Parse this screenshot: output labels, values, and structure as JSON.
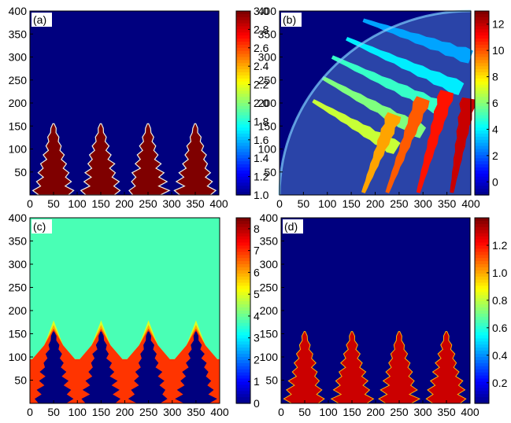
{
  "chart_data": [
    {
      "panel": "(a)",
      "type": "heatmap",
      "xlim": [
        0,
        400
      ],
      "ylim": [
        0,
        400
      ],
      "x_ticks": [
        0,
        50,
        100,
        150,
        200,
        250,
        300,
        350,
        400
      ],
      "y_ticks": [
        50,
        100,
        150,
        200,
        250,
        300,
        350,
        400
      ],
      "colorbar": {
        "range": [
          1.0,
          3.0
        ],
        "ticks": [
          1.0,
          1.2,
          1.4,
          1.6,
          1.8,
          2.0,
          2.2,
          2.4,
          2.6,
          2.8,
          3.0
        ],
        "tick_labels": [
          "1.0",
          "1.2",
          "1.4",
          "1.6",
          "1.8",
          "2.0",
          "2.2",
          "2.4",
          "2.6",
          "2.8",
          "3.0"
        ]
      },
      "background_value": 1.0,
      "structures": [
        {
          "shape": "dendritic tree",
          "base_x": 50,
          "tip_x": 50,
          "tip_y": 155,
          "value": 3.0
        },
        {
          "shape": "dendritic tree",
          "base_x": 150,
          "tip_x": 150,
          "tip_y": 155,
          "value": 3.0
        },
        {
          "shape": "dendritic tree",
          "base_x": 250,
          "tip_x": 250,
          "tip_y": 155,
          "value": 3.0
        },
        {
          "shape": "dendritic tree",
          "base_x": 350,
          "tip_x": 350,
          "tip_y": 155,
          "value": 3.0
        }
      ]
    },
    {
      "panel": "(b)",
      "type": "heatmap",
      "xlim": [
        0,
        400
      ],
      "ylim": [
        0,
        400
      ],
      "x_ticks": [
        0,
        50,
        100,
        150,
        200,
        250,
        300,
        350,
        400
      ],
      "y_ticks": [
        50,
        100,
        150,
        200,
        250,
        300,
        350,
        400
      ],
      "colorbar": {
        "range": [
          -1,
          13
        ],
        "ticks": [
          0,
          2,
          4,
          6,
          8,
          10,
          12
        ],
        "tick_labels": [
          "0",
          "2",
          "4",
          "6",
          "8",
          "10",
          "12"
        ]
      },
      "background_value": -1,
      "quarter_disk": {
        "center": [
          400,
          0
        ],
        "radius": 400
      },
      "structures": [
        {
          "shape": "fern frond",
          "from": [
            175,
            380
          ],
          "to": [
            400,
            300
          ],
          "value": 3
        },
        {
          "shape": "fern frond",
          "from": [
            140,
            340
          ],
          "to": [
            380,
            230
          ],
          "value": 4
        },
        {
          "shape": "fern frond",
          "from": [
            110,
            300
          ],
          "to": [
            345,
            185
          ],
          "value": 5
        },
        {
          "shape": "fern frond",
          "from": [
            90,
            255
          ],
          "to": [
            300,
            135
          ],
          "value": 6
        },
        {
          "shape": "fern frond",
          "from": [
            70,
            205
          ],
          "to": [
            245,
            100
          ],
          "value": 7
        },
        {
          "shape": "fern frond",
          "from": [
            175,
            5
          ],
          "to": [
            240,
            175
          ],
          "value": 9
        },
        {
          "shape": "fern frond",
          "from": [
            225,
            5
          ],
          "to": [
            300,
            210
          ],
          "value": 10
        },
        {
          "shape": "fern frond",
          "from": [
            290,
            5
          ],
          "to": [
            350,
            225
          ],
          "value": 11
        },
        {
          "shape": "fern frond",
          "from": [
            360,
            5
          ],
          "to": [
            395,
            210
          ],
          "value": 12
        }
      ]
    },
    {
      "panel": "(c)",
      "type": "heatmap",
      "xlim": [
        0,
        400
      ],
      "ylim": [
        0,
        400
      ],
      "x_ticks": [
        0,
        50,
        100,
        150,
        200,
        250,
        300,
        350,
        400
      ],
      "y_ticks": [
        50,
        100,
        150,
        200,
        250,
        300,
        350,
        400
      ],
      "colorbar": {
        "range": [
          0,
          8.5
        ],
        "ticks": [
          0,
          1,
          2,
          3,
          4,
          5,
          6,
          7,
          8
        ],
        "tick_labels": [
          "0",
          "1",
          "2",
          "3",
          "4",
          "5",
          "6",
          "7",
          "8"
        ]
      },
      "background_value": 3.8,
      "halo_values": [
        5,
        6,
        7
      ],
      "structures_value": 0,
      "structures": [
        {
          "shape": "dendritic tree",
          "base_x": 50,
          "tip_y": 155
        },
        {
          "shape": "dendritic tree",
          "base_x": 150,
          "tip_y": 155
        },
        {
          "shape": "dendritic tree",
          "base_x": 250,
          "tip_y": 155
        },
        {
          "shape": "dendritic tree",
          "base_x": 350,
          "tip_y": 155
        }
      ]
    },
    {
      "panel": "(d)",
      "type": "heatmap",
      "xlim": [
        0,
        400
      ],
      "ylim": [
        0,
        400
      ],
      "x_ticks": [
        0,
        50,
        100,
        150,
        200,
        250,
        300,
        350,
        400
      ],
      "y_ticks": [
        50,
        100,
        150,
        200,
        250,
        300,
        350,
        400
      ],
      "colorbar": {
        "range": [
          0.05,
          1.4
        ],
        "ticks": [
          0.2,
          0.4,
          0.6,
          0.8,
          1.0,
          1.2
        ],
        "tick_labels": [
          "0.2",
          "0.4",
          "0.6",
          "0.8",
          "1.0",
          "1.2"
        ]
      },
      "background_value": 0.05,
      "structures": [
        {
          "shape": "dendritic tree",
          "base_x": 50,
          "tip_y": 155,
          "value": 1.3
        },
        {
          "shape": "dendritic tree",
          "base_x": 150,
          "tip_y": 155,
          "value": 1.3
        },
        {
          "shape": "dendritic tree",
          "base_x": 250,
          "tip_y": 155,
          "value": 1.3
        },
        {
          "shape": "dendritic tree",
          "base_x": 350,
          "tip_y": 155,
          "value": 1.3
        }
      ]
    }
  ],
  "colors": {
    "jet": [
      "#00007f",
      "#0000ff",
      "#007fff",
      "#00ffff",
      "#7fff7f",
      "#ffff00",
      "#ff7f00",
      "#ff0000",
      "#7f0000"
    ],
    "outline": "#000000",
    "background": "#ffffff"
  }
}
